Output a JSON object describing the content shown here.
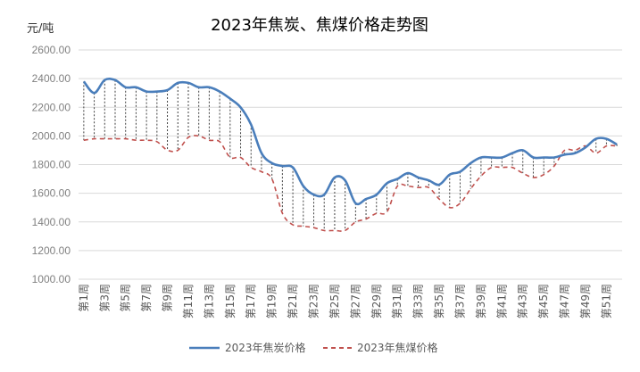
{
  "chart_data": {
    "type": "line",
    "title": "2023年焦炭、焦煤价格走势图",
    "ylabel": "元/吨",
    "xlabel": "",
    "ylim": [
      1000,
      2600
    ],
    "yticks": [
      "1000.00",
      "1200.00",
      "1400.00",
      "1600.00",
      "1800.00",
      "2000.00",
      "2200.00",
      "2400.00",
      "2600.00"
    ],
    "categories": [
      "第1周",
      "第2周",
      "第3周",
      "第4周",
      "第5周",
      "第6周",
      "第7周",
      "第8周",
      "第9周",
      "第10周",
      "第11周",
      "第12周",
      "第13周",
      "第14周",
      "第15周",
      "第16周",
      "第17周",
      "第18周",
      "第19周",
      "第20周",
      "第21周",
      "第22周",
      "第23周",
      "第24周",
      "第25周",
      "第26周",
      "第27周",
      "第28周",
      "第29周",
      "第30周",
      "第31周",
      "第32周",
      "第33周",
      "第34周",
      "第35周",
      "第36周",
      "第37周",
      "第38周",
      "第39周",
      "第40周",
      "第41周",
      "第42周",
      "第43周",
      "第44周",
      "第45周",
      "第46周",
      "第47周",
      "第48周",
      "第49周",
      "第50周",
      "第51周",
      "第52周"
    ],
    "visible_categories": [
      "第1周",
      "第3周",
      "第5周",
      "第7周",
      "第9周",
      "第11周",
      "第13周",
      "第15周",
      "第17周",
      "第19周",
      "第21周",
      "第23周",
      "第25周",
      "第27周",
      "第29周",
      "第31周",
      "第33周",
      "第35周",
      "第37周",
      "第39周",
      "第41周",
      "第43周",
      "第45周",
      "第47周",
      "第49周",
      "第51周"
    ],
    "series": [
      {
        "name": "2023年焦炭价格",
        "color": "#4a7ebb",
        "style": "solid",
        "values": [
          2380,
          2300,
          2390,
          2390,
          2340,
          2340,
          2310,
          2310,
          2320,
          2370,
          2370,
          2340,
          2340,
          2310,
          2260,
          2200,
          2080,
          1880,
          1810,
          1790,
          1780,
          1650,
          1590,
          1590,
          1710,
          1690,
          1530,
          1560,
          1590,
          1670,
          1700,
          1740,
          1710,
          1690,
          1660,
          1730,
          1750,
          1810,
          1850,
          1850,
          1850,
          1880,
          1900,
          1850,
          1850,
          1850,
          1870,
          1880,
          1920,
          1980,
          1980,
          1940
        ]
      },
      {
        "name": "2023年焦煤价格",
        "color": "#c0504d",
        "style": "dashed",
        "values": [
          1970,
          1980,
          1980,
          1980,
          1980,
          1970,
          1970,
          1960,
          1900,
          1900,
          1990,
          2000,
          1970,
          1960,
          1850,
          1850,
          1780,
          1750,
          1700,
          1460,
          1380,
          1370,
          1360,
          1340,
          1340,
          1340,
          1400,
          1420,
          1460,
          1470,
          1650,
          1650,
          1640,
          1640,
          1560,
          1500,
          1530,
          1630,
          1720,
          1780,
          1780,
          1780,
          1740,
          1710,
          1730,
          1790,
          1900,
          1900,
          1930,
          1880,
          1930,
          1930
        ]
      }
    ],
    "grid": true,
    "legend": "bottom"
  }
}
